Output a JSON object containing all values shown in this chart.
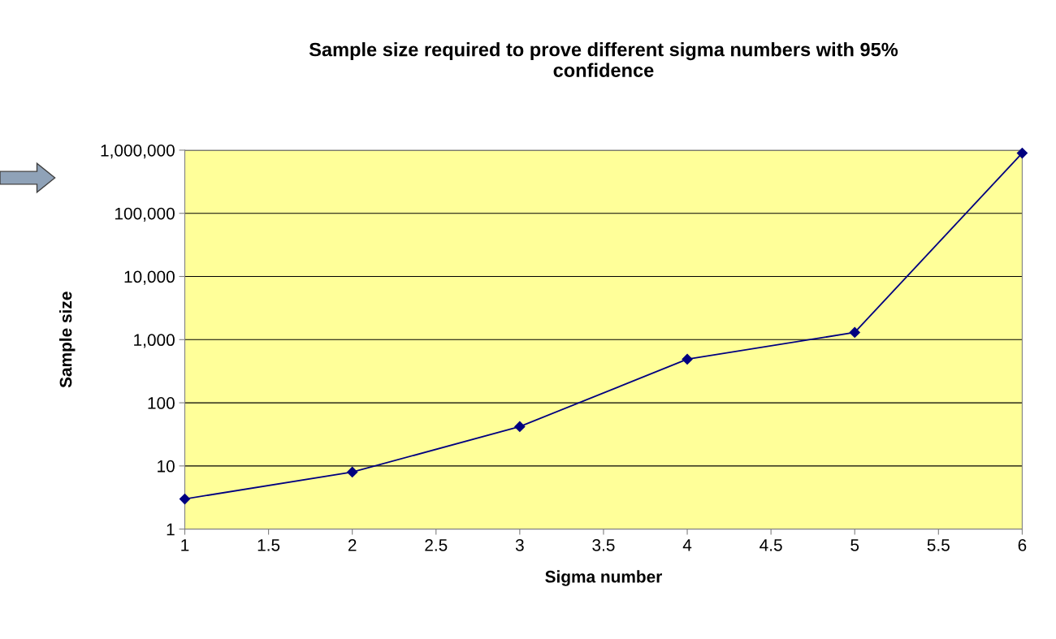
{
  "chart_data": {
    "type": "line",
    "title": "Sample size required to prove different sigma numbers with 95%\nconfidence",
    "xlabel": "Sigma number",
    "ylabel": "Sample size",
    "x": [
      1,
      2,
      3,
      4,
      5,
      6
    ],
    "series": [
      {
        "color": "#000080",
        "values": [
          3,
          8,
          42,
          490,
          1300,
          900000
        ]
      }
    ],
    "log": "y",
    "marker": "diamond",
    "line_style": "solid",
    "grid": "y",
    "xlim": [
      1,
      6
    ],
    "xticks": [
      1,
      1.5,
      2,
      2.5,
      3,
      3.5,
      4,
      4.5,
      5,
      5.5,
      6
    ],
    "ylim": [
      1,
      1000000
    ],
    "yticks": [
      1,
      10,
      100,
      {
        "value": 1000,
        "label": "1,000"
      },
      {
        "value": 10000,
        "label": "10,000"
      },
      {
        "value": 100000,
        "label": "100,000"
      },
      {
        "value": 1000000,
        "label": "1,000,000"
      }
    ]
  }
}
